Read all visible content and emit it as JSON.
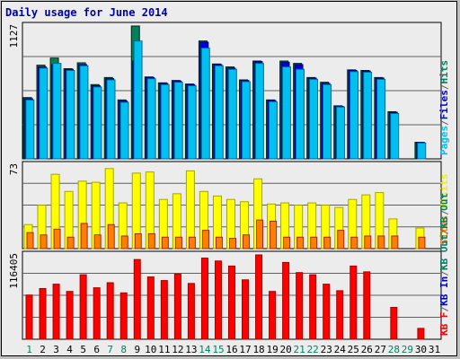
{
  "chart_data": {
    "type": "bar",
    "title": "Daily usage for June 2014",
    "categories": [
      "1",
      "2",
      "3",
      "4",
      "5",
      "6",
      "7",
      "8",
      "9",
      "10",
      "11",
      "12",
      "13",
      "14",
      "15",
      "16",
      "17",
      "18",
      "19",
      "20",
      "21",
      "22",
      "23",
      "24",
      "25",
      "26",
      "27",
      "28",
      "29",
      "30",
      "31"
    ],
    "weekend_days": [
      "1",
      "7",
      "8",
      "14",
      "15",
      "21",
      "22",
      "28",
      "29"
    ],
    "panels": [
      {
        "id": "top",
        "ymax_label": "1127",
        "ymax": 1127,
        "legend": [
          "Pages",
          "/",
          "Files",
          "/",
          "Hits"
        ],
        "legend_colors": [
          "#00C0F0",
          "#606060",
          "#0000D0",
          "#606060",
          "#008060"
        ],
        "series": [
          {
            "name": "Hits",
            "color": "#008060",
            "values": [
              520,
              795,
              855,
              765,
              815,
              630,
              690,
              500,
              1127,
              695,
              645,
              665,
              635,
              1000,
              805,
              780,
              670,
              830,
              500,
              830,
              810,
              690,
              650,
              450,
              755,
              750,
              690,
              400,
              0,
              140,
              0
            ]
          },
          {
            "name": "Files",
            "color": "#0000D0",
            "values": [
              510,
              780,
              800,
              760,
              800,
              620,
              680,
              490,
              830,
              690,
              640,
              660,
              630,
              990,
              800,
              770,
              665,
              825,
              495,
              820,
              800,
              685,
              640,
              445,
              750,
              745,
              685,
              395,
              0,
              140,
              0
            ]
          },
          {
            "name": "Pages",
            "color": "#00C0F0",
            "values": [
              500,
              770,
              810,
              750,
              790,
              610,
              670,
              480,
              1000,
              680,
              630,
              650,
              620,
              940,
              790,
              760,
              655,
              810,
              485,
              780,
              760,
              675,
              630,
              440,
              740,
              735,
              675,
              385,
              0,
              135,
              0
            ]
          }
        ]
      },
      {
        "id": "middle",
        "ymax_label": "73",
        "ymax": 73,
        "legend": [
          "Sites",
          "/",
          "Visits"
        ],
        "legend_colors": [
          "#FF8000",
          "#606060",
          "#F0F000"
        ],
        "series": [
          {
            "name": "Visits",
            "color": "#FFFF00",
            "values": [
              21,
              38,
              65,
              50,
              59,
              58,
              70,
              40,
              66,
              67,
              43,
              48,
              68,
              50,
              46,
              43,
              41,
              61,
              39,
              40,
              38,
              40,
              38,
              36,
              43,
              47,
              49,
              26,
              0,
              18,
              0
            ]
          },
          {
            "name": "Sites",
            "color": "#FF8000",
            "values": [
              14,
              12,
              17,
              10,
              22,
              12,
              21,
              11,
              13,
              13,
              10,
              10,
              10,
              16,
              10,
              9,
              12,
              25,
              24,
              10,
              10,
              10,
              10,
              16,
              10,
              11,
              11,
              11,
              0,
              10,
              0
            ]
          }
        ]
      },
      {
        "id": "bottom",
        "ymax_label": "116405",
        "ymax": 116405,
        "legend": [
          "KB F",
          "/",
          "KB In",
          "/",
          "KB Out",
          "/",
          "KB Out"
        ],
        "legend_colors": [
          "#FF0000",
          "#606060",
          "#0000D0",
          "#606060",
          "#008060",
          "#606060",
          "#008060"
        ],
        "series": [
          {
            "name": "KB F",
            "color": "#FF0000",
            "values": [
              61000,
              70000,
              76000,
              66000,
              89000,
              71000,
              78000,
              64000,
              110000,
              86000,
              81000,
              90000,
              77000,
              112000,
              108000,
              101000,
              82000,
              116405,
              66000,
              106000,
              92000,
              89000,
              76000,
              67000,
              101000,
              93000,
              0,
              44000,
              0,
              15000,
              0
            ]
          }
        ]
      }
    ]
  }
}
